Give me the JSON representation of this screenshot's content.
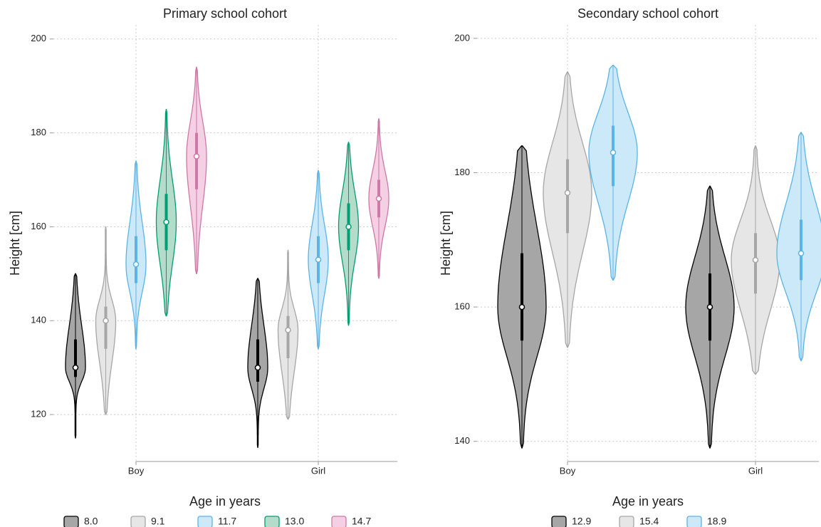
{
  "chart_data": [
    {
      "type": "violin",
      "title": "Primary school cohort",
      "y_label": "Height [cm]",
      "legend_title": "Age in years",
      "categories": [
        "Boy",
        "Girl"
      ],
      "ylim": [
        110,
        203
      ],
      "yticks": [
        120,
        140,
        160,
        180,
        200
      ],
      "grid": true,
      "series": [
        {
          "name": "8.0",
          "color": "#a6a6a6",
          "line_color": "#000000",
          "median": [
            130,
            130
          ],
          "q1": [
            128,
            127
          ],
          "q3": [
            136,
            136
          ],
          "min": [
            115,
            113
          ],
          "max": [
            150,
            149
          ]
        },
        {
          "name": "9.1",
          "color": "#e6e6e6",
          "line_color": "#a6a6a6",
          "median": [
            140,
            138
          ],
          "q1": [
            134,
            132
          ],
          "q3": [
            143,
            141
          ],
          "min": [
            120,
            119
          ],
          "max": [
            160,
            155
          ]
        },
        {
          "name": "11.7",
          "color": "#cce9fa",
          "line_color": "#5bb4e5",
          "median": [
            152,
            153
          ],
          "q1": [
            148,
            148
          ],
          "q3": [
            158,
            158
          ],
          "min": [
            134,
            134
          ],
          "max": [
            174,
            172
          ]
        },
        {
          "name": "13.0",
          "color": "#b3dccb",
          "line_color": "#009e73",
          "median": [
            161,
            160
          ],
          "q1": [
            155,
            155
          ],
          "q3": [
            167,
            165
          ],
          "min": [
            141,
            139
          ],
          "max": [
            185,
            178
          ]
        },
        {
          "name": "14.7",
          "color": "#f5d0e4",
          "line_color": "#cc79a7",
          "median": [
            175,
            166
          ],
          "q1": [
            168,
            162
          ],
          "q3": [
            180,
            170
          ],
          "min": [
            150,
            149
          ],
          "max": [
            194,
            183
          ]
        }
      ]
    },
    {
      "type": "violin",
      "title": "Secondary school cohort",
      "y_label": "Height [cm]",
      "legend_title": "Age in years",
      "categories": [
        "Boy",
        "Girl"
      ],
      "ylim": [
        137,
        202
      ],
      "yticks": [
        140,
        160,
        180,
        200
      ],
      "grid": true,
      "series": [
        {
          "name": "12.9",
          "color": "#a6a6a6",
          "line_color": "#000000",
          "median": [
            160,
            160
          ],
          "q1": [
            155,
            155
          ],
          "q3": [
            168,
            165
          ],
          "min": [
            139,
            139
          ],
          "max": [
            184,
            178
          ]
        },
        {
          "name": "15.4",
          "color": "#e6e6e6",
          "line_color": "#a6a6a6",
          "median": [
            177,
            167
          ],
          "q1": [
            171,
            162
          ],
          "q3": [
            182,
            171
          ],
          "min": [
            154,
            150
          ],
          "max": [
            195,
            184
          ]
        },
        {
          "name": "18.9",
          "color": "#cce9fa",
          "line_color": "#5bb4e5",
          "median": [
            183,
            168
          ],
          "q1": [
            178,
            164
          ],
          "q3": [
            187,
            173
          ],
          "min": [
            164,
            152
          ],
          "max": [
            196,
            186
          ]
        }
      ]
    }
  ]
}
